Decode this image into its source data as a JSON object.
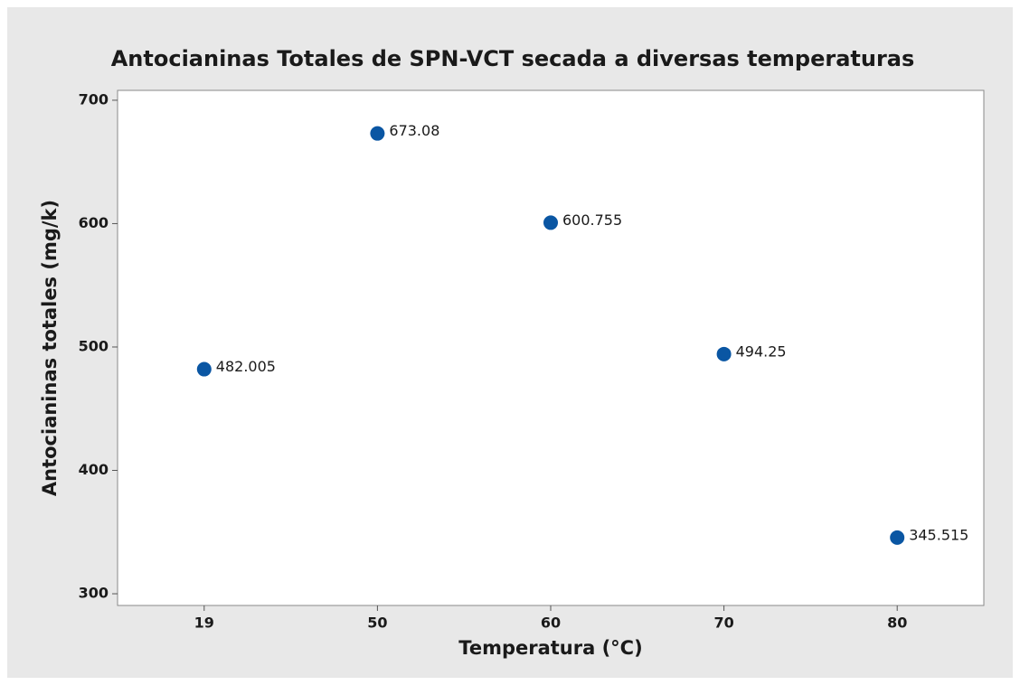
{
  "chart_data": {
    "type": "scatter",
    "title": "Antocianinas Totales de SPN-VCT secada a diversas temperaturas",
    "x_label": "Temperatura (°C)",
    "y_label": "Antocianinas totales (mg/k)",
    "categories": [
      "19",
      "50",
      "60",
      "70",
      "80"
    ],
    "values": [
      482.005,
      673.08,
      600.755,
      494.25,
      345.515
    ],
    "color": "#0a56a3",
    "ylim": [
      290.5,
      708
    ],
    "yticks": [
      300,
      400,
      500,
      600,
      700
    ],
    "grid": false
  }
}
